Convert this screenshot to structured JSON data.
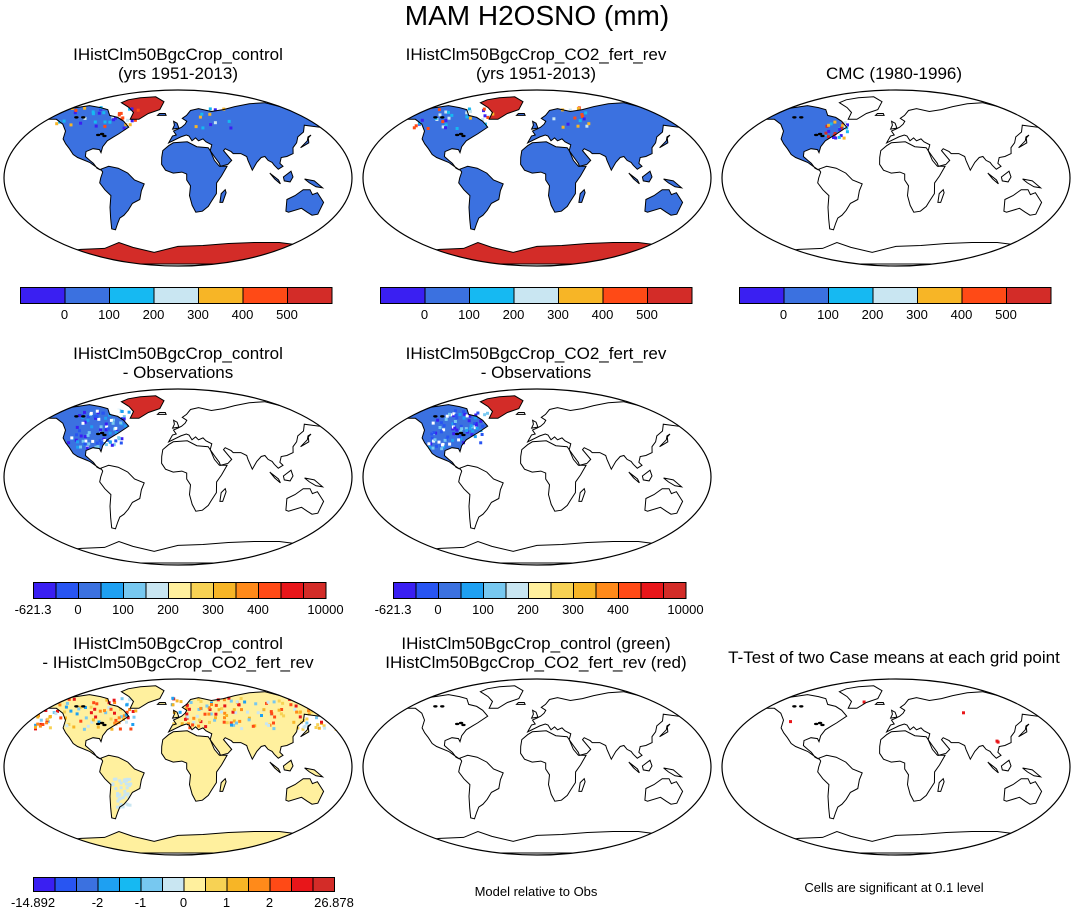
{
  "figure_title": "MAM H2OSNO (mm)",
  "colors": {
    "ocean": "#ffffff",
    "coast": "#000000",
    "cb_a": [
      "#3a1ff2",
      "#3b71e0",
      "#16b9f2",
      "#c9e6f2",
      "#f7b526",
      "#ff4a16",
      "#d32c28"
    ],
    "cb_b": [
      "#3a1ff2",
      "#2855f2",
      "#3b71e0",
      "#1ea0f2",
      "#77c8f0",
      "#c9e6f2",
      "#fff09e",
      "#f7d254",
      "#f7b526",
      "#ff8a1a",
      "#ff4a16",
      "#e8161a",
      "#d32c28"
    ],
    "cb_c": [
      "#3a1ff2",
      "#2855f2",
      "#3b71e0",
      "#1ea0f2",
      "#16b9f2",
      "#77c8f0",
      "#c9e6f2",
      "#fff09e",
      "#f7d254",
      "#f7b526",
      "#ff8a1a",
      "#ff4a16",
      "#e8161a",
      "#d32c28"
    ]
  },
  "panels": [
    {
      "title1": "IHistClm50BgcCrop_control",
      "title2": "(yrs 1951-2013)",
      "fill": "model",
      "land": "#3b71e0",
      "antarctica": "#d32c28",
      "greenland": "#d32c28",
      "colorbar": "a"
    },
    {
      "title1": "IHistClm50BgcCrop_CO2_fert_rev",
      "title2": "(yrs 1951-2013)",
      "fill": "model",
      "land": "#3b71e0",
      "antarctica": "#d32c28",
      "greenland": "#d32c28",
      "colorbar": "a"
    },
    {
      "title1": "CMC (1980-1996)",
      "title2": "",
      "fill": "obs",
      "land": "#3b71e0",
      "colorbar": "a"
    },
    {
      "title1": "IHistClm50BgcCrop_control",
      "title2": "- Observations",
      "fill": "diff",
      "land": "#3b71e0",
      "colorbar": "b"
    },
    {
      "title1": "IHistClm50BgcCrop_CO2_fert_rev",
      "title2": "- Observations",
      "fill": "diff",
      "land": "#3b71e0",
      "colorbar": "b"
    },
    {
      "title1": "IHistClm50BgcCrop_control",
      "title2": "- IHistClm50BgcCrop_CO2_fert_rev",
      "fill": "casediff",
      "land": "#fff09e",
      "antarctica": "#fff09e",
      "colorbar": "c"
    },
    {
      "title1": "IHistClm50BgcCrop_control (green)",
      "title2": "IHistClm50BgcCrop_CO2_fert_rev (red)",
      "fill": "none",
      "colorbar": "none"
    },
    {
      "title1": "T-Test of two Case means at each grid point",
      "title2": "",
      "fill": "ttest",
      "colorbar": "none"
    }
  ],
  "chart_data": [
    {
      "type": "heatmap",
      "title": "IHistClm50BgcCrop_control (yrs 1951-2013)",
      "colorbar_labels": [
        "0",
        "100",
        "200",
        "300",
        "400",
        "500"
      ]
    },
    {
      "type": "heatmap",
      "title": "IHistClm50BgcCrop_CO2_fert_rev (yrs 1951-2013)",
      "colorbar_labels": [
        "0",
        "100",
        "200",
        "300",
        "400",
        "500"
      ]
    },
    {
      "type": "heatmap",
      "title": "CMC (1980-1996)",
      "colorbar_labels": [
        "0",
        "100",
        "200",
        "300",
        "400",
        "500"
      ]
    },
    {
      "type": "heatmap",
      "title": "IHistClm50BgcCrop_control - Observations",
      "colorbar_labels": [
        "-621.3",
        "0",
        "100",
        "200",
        "300",
        "400",
        "10000"
      ]
    },
    {
      "type": "heatmap",
      "title": "IHistClm50BgcCrop_CO2_fert_rev - Observations",
      "colorbar_labels": [
        "-621.3",
        "0",
        "100",
        "200",
        "300",
        "400",
        "10000"
      ]
    },
    {
      "type": "heatmap",
      "title": "IHistClm50BgcCrop_control - IHistClm50BgcCrop_CO2_fert_rev",
      "colorbar_labels": [
        "-14.892",
        "-2",
        "-1",
        "0",
        "1",
        "2",
        "26.878"
      ]
    },
    {
      "type": "heatmap",
      "title": "IHistClm50BgcCrop_control (green) IHistClm50BgcCrop_CO2_fert_rev (red)"
    },
    {
      "type": "heatmap",
      "title": "T-Test of two Case means at each grid point"
    }
  ],
  "footnotes": {
    "model_relative": "Model relative to Obs",
    "significance": "Cells are significant at 0.1 level"
  }
}
